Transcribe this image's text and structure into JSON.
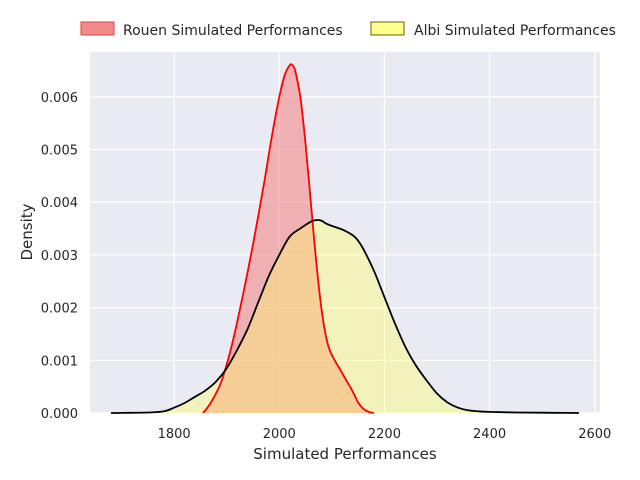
{
  "chart_data": {
    "type": "area",
    "title": "",
    "xlabel": "Simulated Performances",
    "ylabel": "Density",
    "xlim": [
      1640,
      2610
    ],
    "ylim": [
      0,
      0.00685
    ],
    "x_ticks": [
      1800,
      2000,
      2200,
      2400,
      2600
    ],
    "y_ticks": [
      0.0,
      0.001,
      0.002,
      0.003,
      0.004,
      0.005,
      0.006
    ],
    "x_tick_labels": [
      "1800",
      "2000",
      "2200",
      "2400",
      "2600"
    ],
    "y_tick_labels": [
      "0.000",
      "0.001",
      "0.002",
      "0.003",
      "0.004",
      "0.005",
      "0.006"
    ],
    "grid": true,
    "background": "#eaeaf2",
    "legend_position": "top (outside, above plot)",
    "series": [
      {
        "name": "Rouen Simulated Performances",
        "fill": "#f08080",
        "fill_opacity": 0.55,
        "line": "#ff0000",
        "x": [
          1855,
          1870,
          1890,
          1910,
          1930,
          1950,
          1970,
          1985,
          2000,
          2010,
          2020,
          2025,
          2030,
          2040,
          2050,
          2060,
          2070,
          2080,
          2090,
          2100,
          2120,
          2140,
          2150,
          2160,
          2170,
          2180
        ],
        "y": [
          0.0,
          0.0002,
          0.0006,
          0.0013,
          0.0022,
          0.0032,
          0.0043,
          0.0052,
          0.006,
          0.0064,
          0.0066,
          0.0066,
          0.0065,
          0.006,
          0.0051,
          0.004,
          0.0029,
          0.002,
          0.0014,
          0.0011,
          0.00075,
          0.0004,
          0.0002,
          8e-05,
          2e-05,
          0.0
        ]
      },
      {
        "name": "Albi Simulated Performances",
        "fill": "#ffff66",
        "fill_opacity": 0.38,
        "line": "#000000",
        "x": [
          1680,
          1700,
          1750,
          1780,
          1800,
          1820,
          1840,
          1860,
          1880,
          1900,
          1920,
          1940,
          1960,
          1980,
          2000,
          2020,
          2040,
          2060,
          2070,
          2080,
          2090,
          2100,
          2120,
          2140,
          2150,
          2160,
          2180,
          2200,
          2220,
          2240,
          2260,
          2280,
          2300,
          2320,
          2340,
          2360,
          2380,
          2400,
          2450,
          2500,
          2550,
          2570
        ],
        "y": [
          0.0,
          2e-06,
          1e-05,
          3e-05,
          0.0001,
          0.00019,
          0.00031,
          0.00043,
          0.0006,
          0.00085,
          0.0012,
          0.0016,
          0.0021,
          0.0026,
          0.003,
          0.00335,
          0.0035,
          0.00363,
          0.00366,
          0.00365,
          0.00359,
          0.00355,
          0.00348,
          0.00337,
          0.00327,
          0.00311,
          0.0027,
          0.0022,
          0.0017,
          0.00125,
          0.0009,
          0.00062,
          0.00037,
          0.0002,
          0.0001,
          5e-05,
          3e-05,
          2e-05,
          1e-05,
          5e-06,
          2e-06,
          0.0
        ]
      }
    ]
  }
}
